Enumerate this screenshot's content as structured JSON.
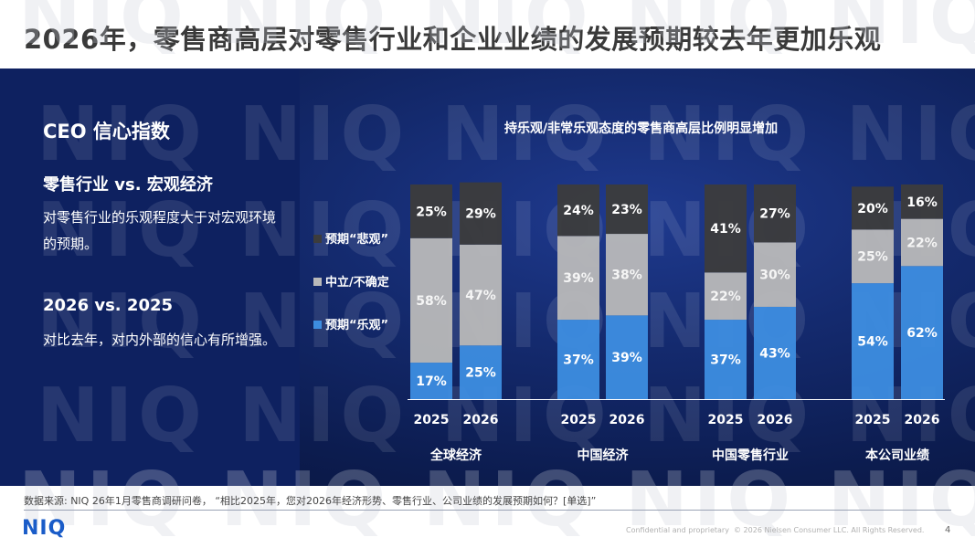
{
  "title": "2026年，零售商高层对零售行业和企业业绩的发展预期较去年更加乐观",
  "left_panel": {
    "heading": "CEO 信心指数",
    "section1_title": "零售行业 vs. 宏观经济",
    "section1_text": "对零售行业的乐观程度大于对宏观环境的预期。",
    "section2_title": "2026 vs. 2025",
    "section2_text": "对比去年，对内外部的信心有所增强。"
  },
  "watermark": "NIQ",
  "chart_data": {
    "type": "bar",
    "stacked": true,
    "percent": true,
    "title": "持乐观/非常乐观态度的零售商高层比例明显增加",
    "groups": [
      "全球经济",
      "中国经济",
      "中国零售行业",
      "本公司业绩"
    ],
    "categories": [
      "2025",
      "2026",
      "2025",
      "2026",
      "2025",
      "2026",
      "2025",
      "2026"
    ],
    "series": [
      {
        "name": "预期“乐观”",
        "color": "#3d8de0",
        "values": [
          17,
          25,
          37,
          39,
          37,
          43,
          54,
          62
        ]
      },
      {
        "name": "中立/不确定",
        "color": "#b9b9b9",
        "values": [
          58,
          47,
          39,
          38,
          22,
          30,
          25,
          22
        ]
      },
      {
        "name": "预期“悲观”",
        "color": "#3c3c3c",
        "values": [
          25,
          29,
          24,
          23,
          41,
          27,
          20,
          16
        ]
      }
    ],
    "legend_order": [
      "预期“悲观”",
      "中立/不确定",
      "预期“乐观”"
    ],
    "legend_position": "left",
    "ylim": [
      0,
      100
    ]
  },
  "footer": {
    "source": "数据来源: NIQ 26年1月零售商调研问卷，  “相比2025年，您对2026年经济形势、零售行业、公司业绩的发展预期如何？[单选]”",
    "logo": "NIQ",
    "confidential": "Confidential and proprietary",
    "copyright": "© 2026 Nielsen Consumer LLC. All Rights Reserved.",
    "page": "4"
  }
}
